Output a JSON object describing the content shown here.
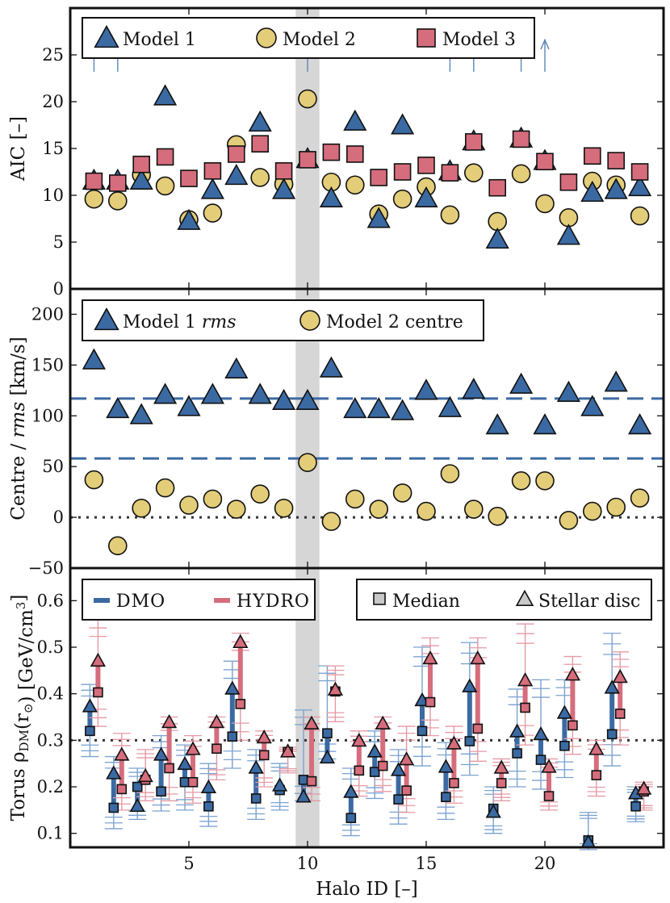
{
  "chart_data": [
    {
      "panel": "top",
      "type": "scatter",
      "ylabel": "AIC [–]",
      "xlabel": "Halo ID [–]",
      "xlim": [
        0,
        25
      ],
      "ylim": [
        0,
        30
      ],
      "yticks": [
        "0",
        "5",
        "10",
        "15",
        "20",
        "25"
      ],
      "xticks": [
        "5",
        "10",
        "15",
        "20"
      ],
      "x": [
        1,
        2,
        3,
        4,
        5,
        6,
        7,
        8,
        9,
        10,
        11,
        12,
        13,
        14,
        15,
        16,
        17,
        18,
        19,
        20,
        21,
        22,
        23,
        24
      ],
      "highlight_band": [
        9.5,
        10.5
      ],
      "series": [
        {
          "name": "Model 1",
          "marker": "triangle",
          "color": "#3b6aa3",
          "values": [
            11.5,
            11.5,
            11.5,
            20.5,
            7.2,
            10.5,
            12.0,
            17.7,
            10.5,
            13.8,
            9.6,
            17.8,
            7.4,
            17.4,
            9.6,
            12.5,
            15.7,
            5.2,
            16.0,
            13.6,
            5.6,
            10.2,
            10.5,
            10.8
          ]
        },
        {
          "name": "Model 2",
          "marker": "circle",
          "color": "#e3cd79",
          "values": [
            9.6,
            9.4,
            12.2,
            11.0,
            7.4,
            8.1,
            15.4,
            11.9,
            11.2,
            20.3,
            11.4,
            11.1,
            8.0,
            9.6,
            10.9,
            7.9,
            12.4,
            7.2,
            12.3,
            9.1,
            7.6,
            11.5,
            11.1,
            7.8
          ]
        },
        {
          "name": "Model 3",
          "marker": "square",
          "color": "#d66d7c",
          "values": [
            11.5,
            11.3,
            13.3,
            14.1,
            11.8,
            12.6,
            14.4,
            15.5,
            12.6,
            13.8,
            14.6,
            14.4,
            11.9,
            12.5,
            13.2,
            12.4,
            15.7,
            10.8,
            16.0,
            13.6,
            11.4,
            14.2,
            13.7,
            12.5
          ]
        }
      ],
      "offscale_arrows_x": [
        1,
        2,
        10,
        16,
        17,
        19,
        20
      ]
    },
    {
      "panel": "middle",
      "type": "scatter",
      "ylabel_parts": [
        "Centre / ",
        "rms",
        " [km/s]"
      ],
      "xlim": [
        0,
        25
      ],
      "ylim": [
        -50,
        225
      ],
      "yticks": [
        "−50",
        "0",
        "50",
        "100",
        "150",
        "200"
      ],
      "x": [
        1,
        2,
        3,
        4,
        5,
        6,
        7,
        8,
        9,
        10,
        11,
        12,
        13,
        14,
        15,
        16,
        17,
        18,
        19,
        20,
        21,
        22,
        23,
        24
      ],
      "reference_lines": [
        {
          "y": 117,
          "style": "dashed",
          "color": "#3b6aa3"
        },
        {
          "y": 58,
          "style": "dashed",
          "color": "#3b6aa3"
        },
        {
          "y": 0,
          "style": "dotted",
          "color": "#333333"
        }
      ],
      "series": [
        {
          "name": "Model 1",
          "name_italic": "rms",
          "marker": "triangle",
          "color": "#3b6aa3",
          "values": [
            154,
            106,
            100,
            120,
            108,
            120,
            145,
            120,
            114,
            114,
            146,
            106,
            106,
            104,
            124,
            107,
            125,
            90,
            130,
            90,
            122,
            108,
            132,
            90
          ]
        },
        {
          "name": "Model 2 centre",
          "marker": "circle",
          "color": "#e3cd79",
          "values": [
            37,
            -28,
            9,
            29,
            12,
            18,
            8,
            23,
            9,
            54,
            -4,
            18,
            8,
            24,
            6,
            43,
            8,
            1,
            36,
            36,
            -3,
            6,
            10,
            19
          ]
        }
      ]
    },
    {
      "panel": "bottom",
      "type": "errorbar",
      "ylabel_parts": [
        "Torus ρ",
        "DM",
        "(r",
        "⊙",
        ") [GeV/cm",
        "3",
        "]"
      ],
      "xlim": [
        0,
        25
      ],
      "ylim": [
        0.07,
        0.67
      ],
      "yticks": [
        "0.1",
        "0.2",
        "0.3",
        "0.4",
        "0.5",
        "0.6"
      ],
      "x": [
        1,
        2,
        3,
        4,
        5,
        6,
        7,
        8,
        9,
        10,
        11,
        12,
        13,
        14,
        15,
        16,
        17,
        18,
        19,
        20,
        21,
        22,
        23,
        24
      ],
      "reference_line": {
        "y": 0.3,
        "style": "dotted",
        "color": "#333333"
      },
      "legend_left": [
        {
          "label": "DMO",
          "color": "#3b6aa3"
        },
        {
          "label": "HYDRO",
          "color": "#d66d7c"
        }
      ],
      "legend_right": [
        {
          "label": "Median",
          "marker": "square"
        },
        {
          "label": "Stellar disc",
          "marker": "triangle"
        }
      ],
      "series": [
        {
          "name": "DMO",
          "color": "#3b6aa3",
          "median": [
            0.32,
            0.155,
            0.2,
            0.19,
            0.21,
            0.158,
            0.308,
            0.175,
            0.193,
            0.215,
            0.315,
            0.133,
            0.232,
            0.173,
            0.32,
            0.178,
            0.298,
            0.153,
            0.272,
            0.258,
            0.288,
            0.085,
            0.313,
            0.158
          ],
          "disc": [
            0.372,
            0.228,
            0.158,
            0.268,
            0.248,
            0.198,
            0.41,
            0.24,
            0.202,
            0.178,
            0.262,
            0.188,
            0.275,
            0.235,
            0.385,
            0.242,
            0.415,
            0.145,
            0.318,
            0.312,
            0.358,
            0.08,
            0.412,
            0.185
          ],
          "low": [
            0.265,
            0.11,
            0.13,
            0.148,
            0.15,
            0.115,
            0.24,
            0.13,
            0.15,
            0.17,
            0.26,
            0.095,
            0.175,
            0.12,
            0.245,
            0.13,
            0.225,
            0.1,
            0.2,
            0.195,
            0.22,
            0.065,
            0.245,
            0.125
          ],
          "high": [
            0.42,
            0.265,
            0.24,
            0.31,
            0.29,
            0.25,
            0.47,
            0.28,
            0.25,
            0.365,
            0.46,
            0.24,
            0.32,
            0.28,
            0.5,
            0.295,
            0.51,
            0.2,
            0.41,
            0.43,
            0.43,
            0.145,
            0.53,
            0.2
          ]
        },
        {
          "name": "HYDRO",
          "color": "#d66d7c",
          "median": [
            0.403,
            0.195,
            0.215,
            0.24,
            0.21,
            0.282,
            0.378,
            0.268,
            0.275,
            0.212,
            0.405,
            0.235,
            0.245,
            0.192,
            0.382,
            0.208,
            0.325,
            0.208,
            0.37,
            0.18,
            0.332,
            0.225,
            0.357,
            0.19
          ],
          "disc": [
            0.47,
            0.268,
            0.222,
            0.338,
            0.28,
            0.338,
            0.51,
            0.305,
            0.275,
            0.335,
            0.408,
            0.298,
            0.335,
            0.258,
            0.475,
            0.292,
            0.475,
            0.24,
            0.428,
            0.242,
            0.44,
            0.28,
            0.435,
            0.195
          ],
          "low": [
            0.33,
            0.15,
            0.17,
            0.17,
            0.165,
            0.215,
            0.3,
            0.2,
            0.23,
            0.17,
            0.34,
            0.18,
            0.19,
            0.145,
            0.31,
            0.165,
            0.255,
            0.17,
            0.29,
            0.15,
            0.27,
            0.18,
            0.29,
            0.15
          ],
          "high": [
            0.56,
            0.315,
            0.28,
            0.35,
            0.31,
            0.35,
            0.53,
            0.32,
            0.285,
            0.35,
            0.46,
            0.32,
            0.35,
            0.33,
            0.52,
            0.33,
            0.52,
            0.26,
            0.55,
            0.26,
            0.48,
            0.3,
            0.49,
            0.21
          ]
        }
      ]
    }
  ]
}
